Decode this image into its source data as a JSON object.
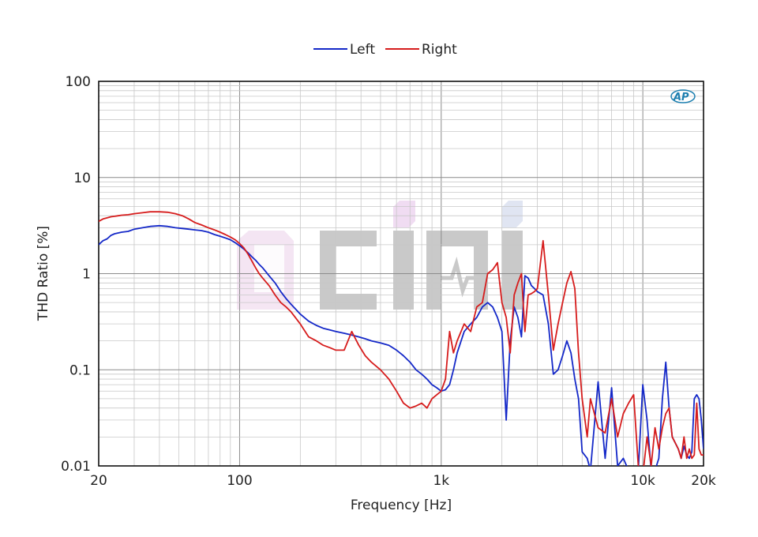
{
  "chart_data": {
    "type": "line",
    "title": "",
    "xlabel": "Frequency [Hz]",
    "ylabel": "THD Ratio [%]",
    "xscale": "log",
    "yscale": "log",
    "xlim": [
      20,
      20000
    ],
    "ylim": [
      0.01,
      100
    ],
    "grid": true,
    "legend_position": "top-center",
    "x_ticks": [
      {
        "value": 20,
        "label": "20"
      },
      {
        "value": 100,
        "label": "100"
      },
      {
        "value": 1000,
        "label": "1k"
      },
      {
        "value": 10000,
        "label": "10k"
      },
      {
        "value": 20000,
        "label": "20k"
      }
    ],
    "y_ticks": [
      {
        "value": 0.01,
        "label": "0.01"
      },
      {
        "value": 0.1,
        "label": "0.1"
      },
      {
        "value": 1,
        "label": "1"
      },
      {
        "value": 10,
        "label": "10"
      },
      {
        "value": 100,
        "label": "100"
      }
    ],
    "series": [
      {
        "name": "Left",
        "color": "#1428c8",
        "x": [
          20,
          21,
          22,
          23,
          24,
          25,
          26,
          28,
          30,
          33,
          36,
          40,
          44,
          48,
          52,
          56,
          60,
          65,
          70,
          75,
          80,
          85,
          90,
          95,
          100,
          105,
          110,
          115,
          120,
          125,
          130,
          140,
          150,
          160,
          170,
          180,
          200,
          220,
          240,
          260,
          280,
          300,
          330,
          360,
          390,
          420,
          450,
          500,
          550,
          600,
          650,
          700,
          750,
          800,
          850,
          900,
          950,
          1000,
          1050,
          1100,
          1150,
          1200,
          1300,
          1400,
          1500,
          1600,
          1700,
          1800,
          1900,
          2000,
          2100,
          2200,
          2300,
          2400,
          2500,
          2600,
          2700,
          2800,
          2900,
          3000,
          3200,
          3400,
          3600,
          3800,
          4000,
          4200,
          4400,
          4600,
          4800,
          5000,
          5300,
          5500,
          6000,
          6500,
          7000,
          7500,
          8000,
          8500,
          9000,
          9500,
          10000,
          10500,
          11000,
          11500,
          12000,
          12500,
          13000,
          13500,
          14000,
          15000,
          15500,
          16000,
          16500,
          17000,
          17500,
          18000,
          18500,
          19000,
          19500,
          20000
        ],
        "values": [
          2.0,
          2.2,
          2.3,
          2.5,
          2.6,
          2.65,
          2.7,
          2.75,
          2.9,
          3.0,
          3.1,
          3.15,
          3.1,
          3.0,
          2.95,
          2.9,
          2.85,
          2.8,
          2.7,
          2.55,
          2.45,
          2.35,
          2.25,
          2.1,
          1.95,
          1.8,
          1.65,
          1.5,
          1.38,
          1.25,
          1.15,
          0.95,
          0.8,
          0.65,
          0.55,
          0.48,
          0.38,
          0.32,
          0.29,
          0.27,
          0.26,
          0.25,
          0.24,
          0.23,
          0.22,
          0.21,
          0.2,
          0.19,
          0.18,
          0.16,
          0.14,
          0.12,
          0.1,
          0.09,
          0.08,
          0.07,
          0.065,
          0.06,
          0.062,
          0.07,
          0.1,
          0.15,
          0.25,
          0.3,
          0.35,
          0.45,
          0.5,
          0.45,
          0.35,
          0.25,
          0.03,
          0.2,
          0.45,
          0.35,
          0.22,
          0.95,
          0.9,
          0.75,
          0.7,
          0.65,
          0.6,
          0.3,
          0.09,
          0.1,
          0.14,
          0.2,
          0.15,
          0.08,
          0.05,
          0.014,
          0.012,
          0.009,
          0.075,
          0.012,
          0.065,
          0.01,
          0.012,
          0.009,
          0.008,
          0.009,
          0.07,
          0.03,
          0.009,
          0.009,
          0.012,
          0.05,
          0.12,
          0.04,
          0.02,
          0.015,
          0.012,
          0.016,
          0.013,
          0.012,
          0.014,
          0.05,
          0.055,
          0.05,
          0.03,
          0.015
        ]
      },
      {
        "name": "Right",
        "color": "#d61c1c",
        "x": [
          20,
          21,
          22,
          23,
          24,
          25,
          26,
          28,
          30,
          33,
          36,
          40,
          44,
          48,
          52,
          56,
          60,
          65,
          70,
          75,
          80,
          85,
          90,
          95,
          100,
          105,
          110,
          115,
          120,
          125,
          130,
          140,
          150,
          160,
          170,
          180,
          200,
          220,
          240,
          260,
          280,
          300,
          330,
          360,
          390,
          420,
          450,
          500,
          550,
          600,
          650,
          700,
          750,
          800,
          850,
          900,
          950,
          1000,
          1050,
          1100,
          1150,
          1200,
          1300,
          1400,
          1500,
          1600,
          1700,
          1800,
          1900,
          2000,
          2100,
          2200,
          2300,
          2400,
          2500,
          2600,
          2700,
          2800,
          2900,
          3000,
          3200,
          3400,
          3600,
          3800,
          4000,
          4200,
          4400,
          4600,
          4800,
          5000,
          5300,
          5500,
          6000,
          6500,
          7000,
          7500,
          8000,
          8500,
          9000,
          9500,
          10000,
          10500,
          11000,
          11500,
          12000,
          12500,
          13000,
          13500,
          14000,
          15000,
          15500,
          16000,
          16500,
          17000,
          17500,
          18000,
          18500,
          19000,
          19500,
          20000
        ],
        "values": [
          3.5,
          3.7,
          3.8,
          3.9,
          3.95,
          4.0,
          4.05,
          4.1,
          4.2,
          4.3,
          4.4,
          4.4,
          4.35,
          4.2,
          4.0,
          3.7,
          3.4,
          3.2,
          3.0,
          2.85,
          2.7,
          2.55,
          2.4,
          2.25,
          2.05,
          1.85,
          1.6,
          1.35,
          1.15,
          1.0,
          0.9,
          0.75,
          0.6,
          0.5,
          0.45,
          0.4,
          0.3,
          0.22,
          0.2,
          0.18,
          0.17,
          0.16,
          0.16,
          0.25,
          0.18,
          0.14,
          0.12,
          0.1,
          0.08,
          0.06,
          0.045,
          0.04,
          0.042,
          0.045,
          0.04,
          0.05,
          0.055,
          0.06,
          0.08,
          0.25,
          0.15,
          0.2,
          0.3,
          0.25,
          0.45,
          0.5,
          1.0,
          1.1,
          1.3,
          0.5,
          0.35,
          0.15,
          0.6,
          0.8,
          1.0,
          0.25,
          0.6,
          0.62,
          0.65,
          0.7,
          2.2,
          0.6,
          0.16,
          0.3,
          0.5,
          0.8,
          1.05,
          0.7,
          0.15,
          0.05,
          0.02,
          0.05,
          0.025,
          0.022,
          0.05,
          0.02,
          0.035,
          0.045,
          0.055,
          0.01,
          0.008,
          0.02,
          0.01,
          0.025,
          0.015,
          0.025,
          0.035,
          0.04,
          0.02,
          0.015,
          0.012,
          0.02,
          0.012,
          0.015,
          0.012,
          0.013,
          0.045,
          0.015,
          0.013,
          0.013
        ]
      }
    ]
  },
  "watermark": {
    "text": "CIMI",
    "colors": [
      "#b9dcd8",
      "#f5b8d8",
      "#c8b8e8"
    ]
  },
  "ap_logo": {
    "text": "AP",
    "color": "#1d7fb0"
  }
}
